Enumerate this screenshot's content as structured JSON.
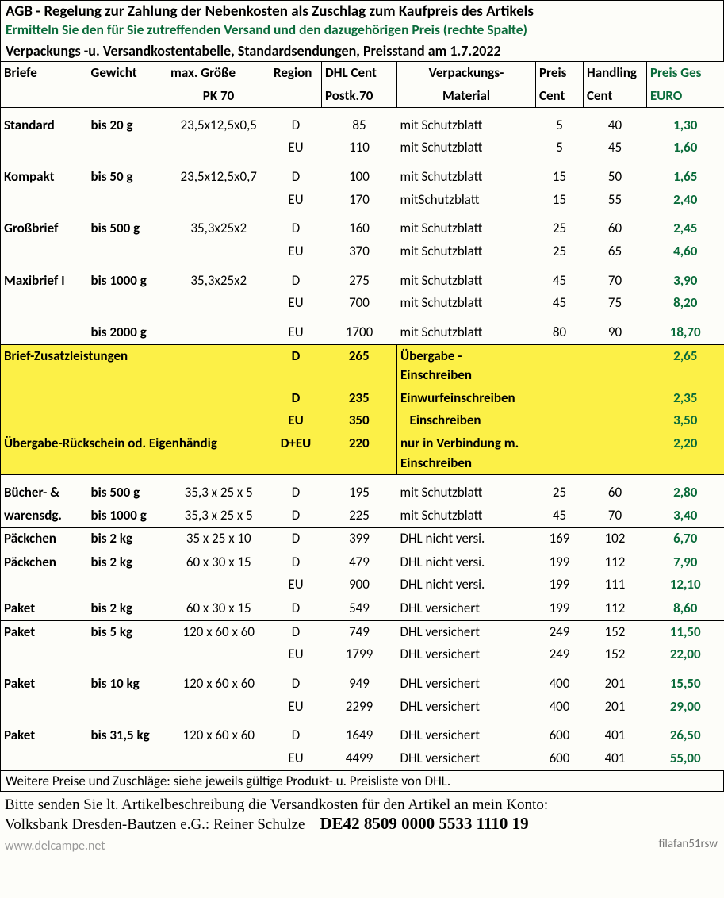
{
  "header": {
    "title": "AGB - Regelung zur Zahlung der Nebenkosten als Zuschlag zum Kaufpreis des Artikels",
    "subtitle": "Ermitteln Sie den für Sie zutreffenden Versand und den dazugehörigen Preis (rechte Spalte)",
    "section": "Verpackungs -u. Versandkostentabelle, Standardsendungen,   Preisstand am 1.7.2022"
  },
  "columns": {
    "c1a": "Briefe",
    "c1b": "Gewicht",
    "c2a": "max. Größe",
    "c2b": "PK 70",
    "c3a": "Region",
    "c4a": "DHL Cent",
    "c4b": "Postk.70",
    "c5a": "Verpackungs-",
    "c5b": "Material",
    "c6a": "Preis",
    "c6b": "Cent",
    "c7a": "Handling",
    "c7b": "Cent",
    "c8a": "Preis Ges",
    "c8b": "EURO"
  },
  "briefe": [
    {
      "name": "Standard",
      "gewicht": "bis 20 g",
      "groesse": "23,5x12,5x0,5",
      "rows": [
        {
          "region": "D",
          "dhl": "85",
          "mat": "mit Schutzblatt",
          "preis": "5",
          "hand": "40",
          "ges": "1,30"
        },
        {
          "region": "EU",
          "dhl": "110",
          "mat": "mit Schutzblatt",
          "preis": "5",
          "hand": "45",
          "ges": "1,60"
        }
      ]
    },
    {
      "name": "Kompakt",
      "gewicht": "bis 50 g",
      "groesse": "23,5x12,5x0,7",
      "rows": [
        {
          "region": "D",
          "dhl": "100",
          "mat": "mit Schutzblatt",
          "preis": "15",
          "hand": "50",
          "ges": "1,65"
        },
        {
          "region": "EU",
          "dhl": "170",
          "mat": "mitSchutzblatt",
          "preis": "15",
          "hand": "55",
          "ges": "2,40"
        }
      ]
    },
    {
      "name": "Großbrief",
      "gewicht": "bis 500 g",
      "groesse": "35,3x25x2",
      "rows": [
        {
          "region": "D",
          "dhl": "160",
          "mat": "mit Schutzblatt",
          "preis": "25",
          "hand": "60",
          "ges": "2,45"
        },
        {
          "region": "EU",
          "dhl": "370",
          "mat": "mit Schutzblatt",
          "preis": "25",
          "hand": "65",
          "ges": "4,60"
        }
      ]
    },
    {
      "name": "Maxibrief I",
      "gewicht": "bis 1000 g",
      "groesse": "35,3x25x2",
      "rows": [
        {
          "region": "D",
          "dhl": "275",
          "mat": "mit Schutzblatt",
          "preis": "45",
          "hand": "70",
          "ges": "3,90"
        },
        {
          "region": "EU",
          "dhl": "700",
          "mat": "mit Schutzblatt",
          "preis": "45",
          "hand": "75",
          "ges": "8,20"
        }
      ]
    },
    {
      "name": "",
      "gewicht": "bis 2000 g",
      "groesse": "",
      "rows": [
        {
          "region": "EU",
          "dhl": "1700",
          "mat": "mit Schutzblatt",
          "preis": "80",
          "hand": "90",
          "ges": "18,70"
        }
      ]
    }
  ],
  "zusatz": {
    "title": "Brief-Zusatzleistungen",
    "rows": [
      {
        "region": "D",
        "dhl": "265",
        "mat": "Übergabe - Einschreiben",
        "ges": "2,65"
      },
      {
        "region": "D",
        "dhl": "235",
        "mat": "Einwurfeinschreiben",
        "ges": "2,35"
      },
      {
        "region": "EU",
        "dhl": "350",
        "mat": "   Einschreiben",
        "ges": "3,50"
      }
    ],
    "last_label": "Übergabe-Rückschein od. Eigenhändig",
    "last": {
      "region": "D+EU",
      "dhl": "220",
      "mat": "nur in Verbindung m. Einschreiben",
      "ges": "2,20"
    }
  },
  "buecher": {
    "name1": "Bücher- &",
    "name2": "warensdg.",
    "rows": [
      {
        "gewicht": "bis 500 g",
        "groesse": "35,3 x 25 x 5",
        "region": "D",
        "dhl": "195",
        "mat": "mit Schutzblatt",
        "preis": "25",
        "hand": "60",
        "ges": "2,80"
      },
      {
        "gewicht": "bis 1000 g",
        "groesse": "35,3 x 25 x 5",
        "region": "D",
        "dhl": "225",
        "mat": "mit Schutzblatt",
        "preis": "45",
        "hand": "70",
        "ges": "3,40"
      }
    ]
  },
  "paeckchen1": {
    "name": "Päckchen",
    "gewicht": "bis 2 kg",
    "groesse": "35 x 25 x 10",
    "rows": [
      {
        "region": "D",
        "dhl": "399",
        "mat": "DHL nicht versi.",
        "preis": "169",
        "hand": "102",
        "ges": "6,70"
      }
    ]
  },
  "paeckchen2": {
    "name": "Päckchen",
    "gewicht": "bis 2 kg",
    "groesse": "60 x 30 x 15",
    "rows": [
      {
        "region": "D",
        "dhl": "479",
        "mat": "DHL nicht versi.",
        "preis": "199",
        "hand": "112",
        "ges": "7,90"
      },
      {
        "region": "EU",
        "dhl": "900",
        "mat": "DHL nicht versi.",
        "preis": "199",
        "hand": "111",
        "ges": "12,10"
      }
    ]
  },
  "paket1": {
    "name": "Paket",
    "gewicht": "bis 2 kg",
    "groesse": "60 x 30 x 15",
    "rows": [
      {
        "region": "D",
        "dhl": "549",
        "mat": "DHL versichert",
        "preis": "199",
        "hand": "112",
        "ges": "8,60"
      }
    ]
  },
  "paket2": {
    "name": "Paket",
    "gewicht": "bis 5 kg",
    "groesse": "120 x 60 x 60",
    "rows": [
      {
        "region": "D",
        "dhl": "749",
        "mat": "DHL versichert",
        "preis": "249",
        "hand": "152",
        "ges": "11,50"
      },
      {
        "region": "EU",
        "dhl": "1799",
        "mat": "DHL versichert",
        "preis": "249",
        "hand": "152",
        "ges": "22,00"
      }
    ]
  },
  "paket3": {
    "name": "Paket",
    "gewicht": "bis 10 kg",
    "groesse": "120 x 60 x 60",
    "rows": [
      {
        "region": "D",
        "dhl": "949",
        "mat": "DHL versichert",
        "preis": "400",
        "hand": "201",
        "ges": "15,50"
      },
      {
        "region": "EU",
        "dhl": "2299",
        "mat": "DHL versichert",
        "preis": "400",
        "hand": "201",
        "ges": "29,00"
      }
    ]
  },
  "paket4": {
    "name": "Paket",
    "gewicht": "bis 31,5 kg",
    "groesse": "120 x 60 x 60",
    "rows": [
      {
        "region": "D",
        "dhl": "1649",
        "mat": "DHL versichert",
        "preis": "600",
        "hand": "401",
        "ges": "26,50"
      },
      {
        "region": "EU",
        "dhl": "4499",
        "mat": "DHL versichert",
        "preis": "600",
        "hand": "401",
        "ges": "55,00"
      }
    ]
  },
  "footer": {
    "note": "Weitere Preise und Zuschläge: siehe jeweils gültige Produkt- u. Preisliste von DHL.",
    "line1": "Bitte senden Sie lt. Artikelbeschreibung die Versandkosten für den Artikel an mein Konto:",
    "bank": "Volksbank Dresden-Bautzen e.G.: Reiner Schulze",
    "iban": "DE42 8509 0000 5533 1110 19",
    "watermark": "www.delcampe.net",
    "signature": "filafan51rsw"
  }
}
